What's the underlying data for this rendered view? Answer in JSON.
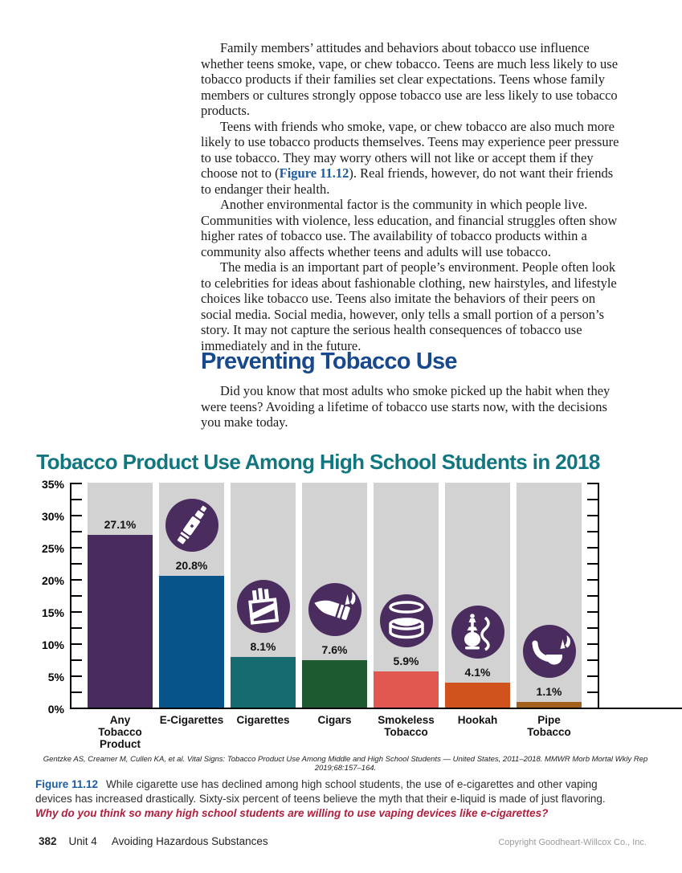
{
  "article": {
    "paragraphs": {
      "p1": "Family members’ attitudes and behaviors about tobacco use influence whether teens smoke, vape, or chew tobacco. Teens are much less likely to use tobacco products if their families set clear expectations. Teens whose family members or cultures strongly oppose tobacco use are less likely to use tobacco products.",
      "p2_before": "Teens with friends who smoke, vape, or chew tobacco are also much more likely to use tobacco products themselves. Teens may experience peer pressure to use tobacco. They may worry others will not like or accept them if they choose not to (",
      "p2_link": "Figure 11.12",
      "p2_after": "). Real friends, however, do not want their friends to endanger their health.",
      "p3": "Another environmental factor is the community in which people live. Communities with violence, less education, and financial struggles often show higher rates of tobacco use. The availability of tobacco products within a community also affects whether teens and adults will use tobacco.",
      "p4": "The media is an important part of people’s environment. People often look to celebrities for ideas about fashionable clothing, new hairstyles, and lifestyle choices like tobacco use. Teens also imitate the behaviors of their peers on social media. Social media, however, only tells a small portion of a person’s story. It may not capture the serious health consequences of tobacco use immediately and in the future.",
      "p5": "Did you know that most adults who smoke picked up the habit when they were teens? Avoiding a lifetime of tobacco use starts now, with the decisions you make today."
    },
    "heading": "Preventing Tobacco Use"
  },
  "chart_data": {
    "type": "bar",
    "title": "Tobacco Product Use Among High School Students in 2018",
    "categories": [
      "Any Tobacco Product",
      "E-Cigarettes",
      "Cigarettes",
      "Cigars",
      "Smokeless Tobacco",
      "Hookah",
      "Pipe Tobacco"
    ],
    "values": [
      27.1,
      20.8,
      8.1,
      7.6,
      5.9,
      4.1,
      1.1
    ],
    "value_labels": [
      "27.1%",
      "20.8%",
      "8.1%",
      "7.6%",
      "5.9%",
      "4.1%",
      "1.1%"
    ],
    "bar_colors": [
      "#4a2b5f",
      "#07538a",
      "#156b70",
      "#1d5a2f",
      "#e0584f",
      "#d0521c",
      "#a2611d"
    ],
    "icons": [
      null,
      "e-cigarette-icon",
      "cigarette-pack-icon",
      "cigar-icon",
      "smokeless-tobacco-tin-icon",
      "hookah-icon",
      "tobacco-pipe-icon"
    ],
    "icon_circle_color": "#4a2c5f",
    "column_bg": "#d2d2d3",
    "title_color": "#107680",
    "xlabel": "",
    "ylabel": "",
    "ylim": [
      0,
      35
    ],
    "ytick_step": 5,
    "yminor_step": 2.5,
    "ytick_suffix": "%",
    "grid": false,
    "legend": false
  },
  "figure": {
    "source": "Gentzke AS, Creamer M, Cullen KA, et al. Vital Signs: Tobacco Product Use Among Middle and High School Students — United States, 2011–2018. MMWR Morb Mortal Wkly Rep 2019;68:157–164.",
    "label": "Figure 11.12",
    "caption": "While cigarette use has declined among high school students, the use of e-cigarettes and other vaping devices has increased drastically. Sixty-six percent of teens believe the myth that their e-liquid is made of just flavoring.",
    "question": "Why do you think so many high school students are willing to use vaping devices like e-cigarettes?"
  },
  "footer": {
    "page_number": "382",
    "unit": "Unit 4",
    "unit_title": "Avoiding Hazardous Substances",
    "copyright": "Copyright Goodheart-Willcox Co., Inc."
  },
  "colors": {
    "heading_blue": "#17498c",
    "figure_label_blue": "#1b5ca4",
    "question_red": "#b01e3d",
    "chart_title_teal": "#107680"
  }
}
